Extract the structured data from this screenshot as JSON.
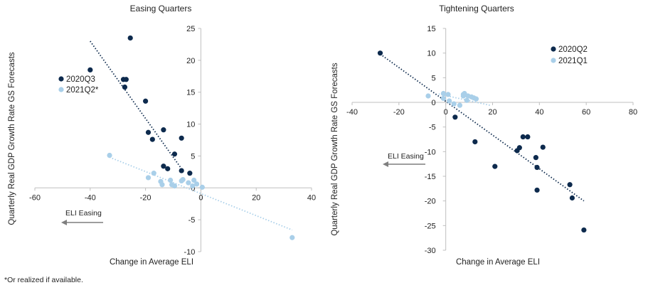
{
  "footnote": "*Or realized if available.",
  "colors": {
    "dark": "#0d2a4d",
    "light": "#a9cfe9",
    "axis": "#bfbfbf",
    "arrow": "#7f7f7f"
  },
  "chart_data": [
    {
      "type": "scatter",
      "title": "Easing Quarters",
      "xlabel": "Change in Average ELI",
      "ylabel": "Quarterly Real GDP Growth Rate GS Forecasts",
      "xlim": [
        -60,
        40
      ],
      "ylim": [
        -10,
        25
      ],
      "xticks": [
        -60,
        -40,
        -20,
        0,
        20,
        40
      ],
      "yticks": [
        -10,
        -5,
        0,
        5,
        10,
        15,
        20,
        25
      ],
      "annotation": "ELI Easing",
      "series": [
        {
          "name": "2020Q3",
          "color": "#0d2a4d",
          "points": [
            [
              -40,
              18.5
            ],
            [
              -25.5,
              23.5
            ],
            [
              -28,
              17
            ],
            [
              -27,
              17
            ],
            [
              -27.5,
              15.8
            ],
            [
              -20,
              13.6
            ],
            [
              -19,
              8.7
            ],
            [
              -17.5,
              7.6
            ],
            [
              -13.5,
              9.1
            ],
            [
              -7,
              7.8
            ],
            [
              -9.5,
              5.3
            ],
            [
              -13.5,
              3.4
            ],
            [
              -12,
              3
            ],
            [
              -7,
              2.7
            ],
            [
              -4,
              2.3
            ]
          ],
          "trend": [
            [
              -40,
              23
            ],
            [
              -7,
              3
            ]
          ]
        },
        {
          "name": "2021Q2*",
          "color": "#a9cfe9",
          "points": [
            [
              -33,
              5.1
            ],
            [
              -17,
              2.3
            ],
            [
              -19,
              1.6
            ],
            [
              -14.5,
              1
            ],
            [
              -14,
              0.5
            ],
            [
              -11,
              1.2
            ],
            [
              -10.5,
              0.5
            ],
            [
              -9.5,
              0.3
            ],
            [
              -7,
              1.1
            ],
            [
              -6.5,
              1.3
            ],
            [
              -4.5,
              0.8
            ],
            [
              -3,
              0.3
            ],
            [
              -2.5,
              1.2
            ],
            [
              -1.5,
              0.6
            ],
            [
              0.5,
              0.1
            ],
            [
              33,
              -7.8
            ]
          ],
          "trend": [
            [
              -33,
              4.8
            ],
            [
              33,
              -6.6
            ]
          ]
        }
      ]
    },
    {
      "type": "scatter",
      "title": "Tightening Quarters",
      "xlabel": "Change in Average ELI",
      "ylabel": "Quarterly Real GDP Growth Rate GS Forecasts",
      "xlim": [
        -40,
        80
      ],
      "ylim": [
        -30,
        15
      ],
      "xticks": [
        -40,
        -20,
        0,
        20,
        40,
        60,
        80
      ],
      "yticks": [
        -30,
        -25,
        -20,
        -15,
        -10,
        -5,
        0,
        5,
        10,
        15
      ],
      "annotation": "ELI Easing",
      "series": [
        {
          "name": "2020Q2",
          "color": "#0d2a4d",
          "points": [
            [
              -28,
              10
            ],
            [
              4,
              -3
            ],
            [
              12.5,
              -8
            ],
            [
              21,
              -13
            ],
            [
              30.5,
              -9.8
            ],
            [
              31.5,
              -9.2
            ],
            [
              33,
              -7
            ],
            [
              35,
              -7
            ],
            [
              38.5,
              -11.2
            ],
            [
              39,
              -13.2
            ],
            [
              39,
              -17.8
            ],
            [
              41.5,
              -9.1
            ],
            [
              53,
              -16.7
            ],
            [
              54,
              -19.4
            ],
            [
              59,
              -25.9
            ]
          ],
          "trend": [
            [
              -28,
              9.8
            ],
            [
              59,
              -20
            ]
          ]
        },
        {
          "name": "2021Q1",
          "color": "#a9cfe9",
          "points": [
            [
              -7.5,
              1.3
            ],
            [
              -1,
              1.8
            ],
            [
              1,
              1.6
            ],
            [
              -1,
              0.8
            ],
            [
              1.5,
              0.3
            ],
            [
              3.5,
              -0.3
            ],
            [
              6,
              -0.6
            ],
            [
              7.5,
              1.3
            ],
            [
              7.5,
              1.6
            ],
            [
              8,
              1.8
            ],
            [
              9,
              0.4
            ],
            [
              9.5,
              1.3
            ],
            [
              11,
              1.1
            ],
            [
              12,
              0.9
            ],
            [
              13,
              0.7
            ]
          ],
          "trend": [
            [
              -3,
              1.7
            ],
            [
              19,
              -0.6
            ]
          ]
        }
      ]
    }
  ]
}
